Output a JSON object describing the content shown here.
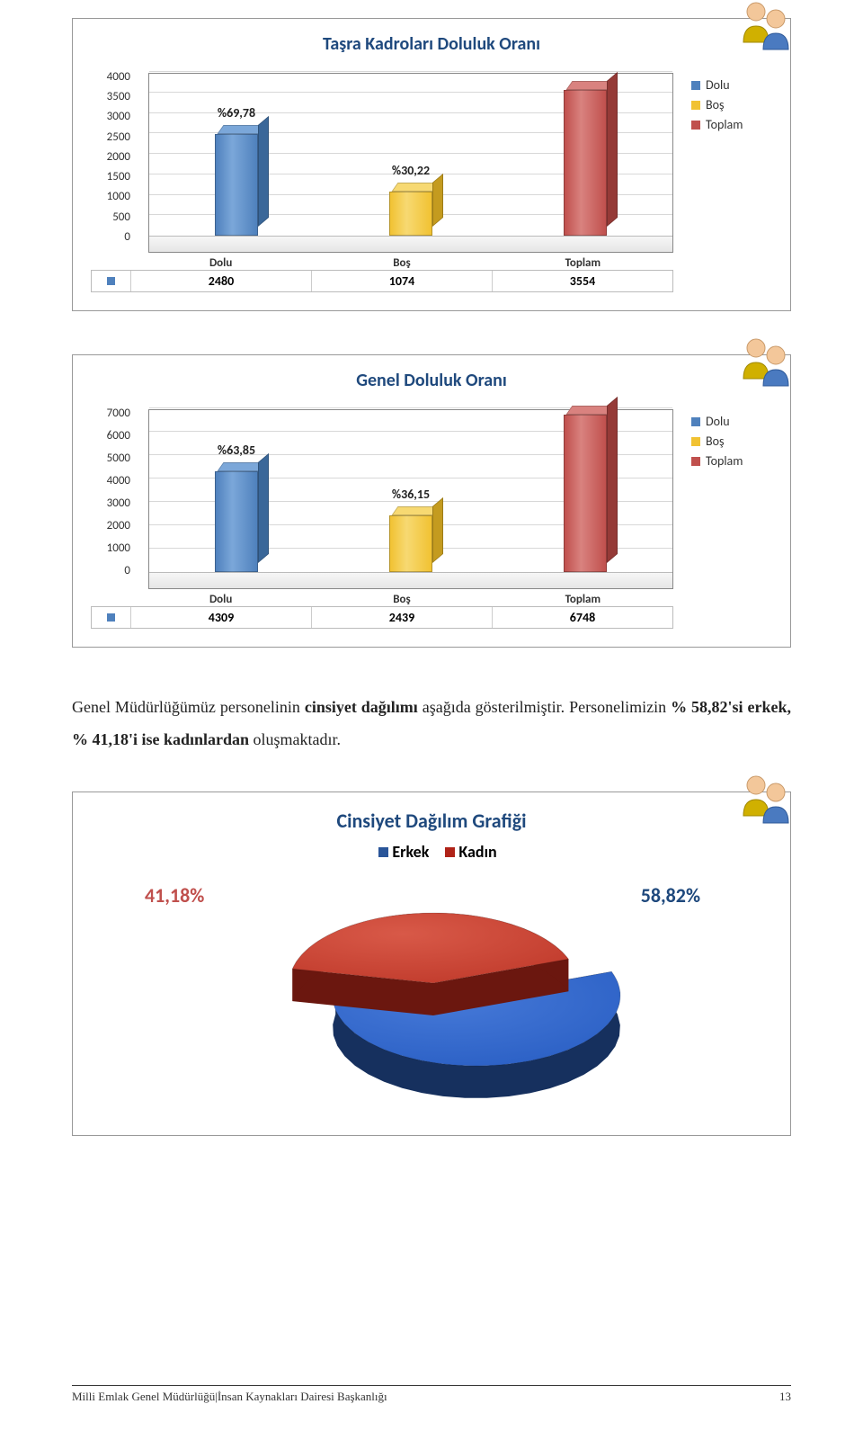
{
  "chart1": {
    "title": "Taşra Kadroları Doluluk Oranı",
    "ymax": 4000,
    "ystep": 500,
    "categories": [
      "Dolu",
      "Boş",
      "Toplam"
    ],
    "values": [
      2480,
      1074,
      3554
    ],
    "top_labels": [
      "%69,78",
      "%30,22",
      ""
    ],
    "colors": [
      "#4f81bd",
      "#f1c232",
      "#c0504d"
    ],
    "colors_top": [
      "#7ba7d9",
      "#f7d972",
      "#d9827f"
    ],
    "colors_side": [
      "#3a6799",
      "#c49b1f",
      "#953a37"
    ],
    "legend": [
      "Dolu",
      "Boş",
      "Toplam"
    ]
  },
  "chart2": {
    "title": "Genel Doluluk Oranı",
    "ymax": 7000,
    "ystep": 1000,
    "categories": [
      "Dolu",
      "Boş",
      "Toplam"
    ],
    "values": [
      4309,
      2439,
      6748
    ],
    "top_labels": [
      "%63,85",
      "%36,15",
      ""
    ],
    "colors": [
      "#4f81bd",
      "#f1c232",
      "#c0504d"
    ],
    "colors_top": [
      "#7ba7d9",
      "#f7d972",
      "#d9827f"
    ],
    "colors_side": [
      "#3a6799",
      "#c49b1f",
      "#953a37"
    ],
    "legend": [
      "Dolu",
      "Boş",
      "Toplam"
    ]
  },
  "paragraph": {
    "t1": "Genel Müdürlüğümüz personelinin ",
    "t2": "cinsiyet dağılımı",
    "t3": " aşağıda gösterilmiştir. Personelimizin ",
    "t4": "% 58,82'si erkek, % 41,18'i ise kadınlardan",
    "t5": " oluşmaktadır."
  },
  "pie": {
    "title": "Cinsiyet Dağılım Grafiği",
    "legend": [
      "Erkek",
      "Kadın"
    ],
    "legend_colors": [
      "#2a5599",
      "#b02318"
    ],
    "labels": [
      "41,18%",
      "58,82%"
    ],
    "label_colors": [
      "#c0504d",
      "#1f497d"
    ],
    "male_pct": 58.82,
    "female_pct": 41.18,
    "male_color": "#2a5fc4",
    "male_top": "#4679d8",
    "male_side": "#1d3f7c",
    "female_color": "#c03a2b",
    "female_top": "#d85948",
    "female_side": "#7d241a"
  },
  "footer": {
    "left": "Milli Emlak Genel Müdürlüğü|İnsan Kaynakları Dairesi Başkanlığı",
    "page": "13"
  }
}
